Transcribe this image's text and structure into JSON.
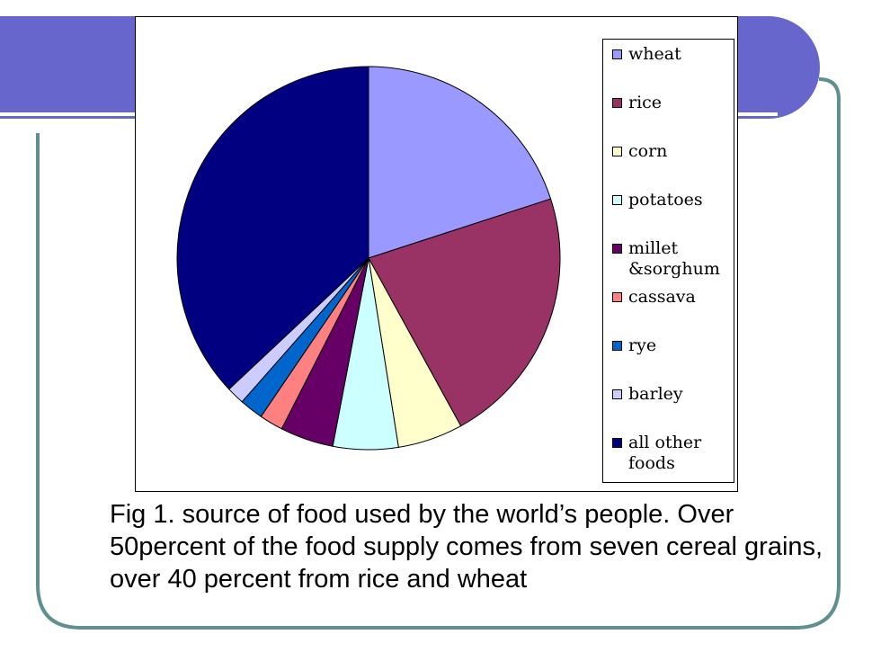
{
  "chart_data": {
    "type": "pie",
    "title": "",
    "legend_position": "right",
    "slices": [
      {
        "label": "wheat",
        "value": 20,
        "color": "#9999ff"
      },
      {
        "label": "rice",
        "value": 22,
        "color": "#993366"
      },
      {
        "label": "corn",
        "value": 5.5,
        "color": "#ffffcc"
      },
      {
        "label": "potatoes",
        "value": 5.5,
        "color": "#ccffff"
      },
      {
        "label": "millet\n&sorghum",
        "value": 4.5,
        "color": "#660066"
      },
      {
        "label": "cassava",
        "value": 2,
        "color": "#ff8080"
      },
      {
        "label": "rye",
        "value": 2,
        "color": "#0066cc"
      },
      {
        "label": "barley",
        "value": 1.5,
        "color": "#ccccff"
      },
      {
        "label": "all other foods",
        "value": 37,
        "color": "#000080"
      }
    ]
  },
  "caption": "Fig 1. source of food used by the world’s people. Over 50percent of the food supply comes from seven cereal grains, over 40 percent from rice and wheat",
  "theme": {
    "header_color": "#6666cc",
    "frame_color": "#5f8f8f"
  }
}
